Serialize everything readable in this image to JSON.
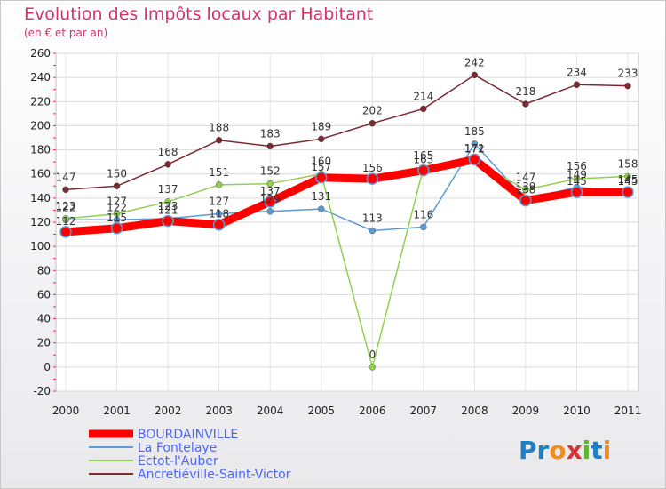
{
  "header": {
    "title": "Evolution des Impôts locaux par Habitant",
    "subtitle": "(en € et par an)"
  },
  "logo": {
    "text": "Proxiti"
  },
  "chart_data": {
    "type": "line",
    "title": "Evolution des Impôts locaux par Habitant",
    "subtitle": "(en € et par an)",
    "xlabel": "",
    "ylabel": "",
    "x": [
      "2000",
      "2001",
      "2002",
      "2003",
      "2004",
      "2005",
      "2006",
      "2007",
      "2008",
      "2009",
      "2010",
      "2011"
    ],
    "ylim": [
      -20,
      260
    ],
    "yticks": [
      -20,
      0,
      20,
      40,
      60,
      80,
      100,
      120,
      140,
      160,
      180,
      200,
      220,
      240,
      260
    ],
    "grid": true,
    "legend_position": "bottom-left",
    "series": [
      {
        "name": "BOURDAINVILLE",
        "color": "#ff0000",
        "values": [
          112,
          115,
          121,
          118,
          137,
          157,
          156,
          163,
          172,
          138,
          145,
          145
        ]
      },
      {
        "name": "La Fontelaye",
        "color": "#5b9bd5",
        "values": [
          122,
          122,
          123,
          127,
          129,
          131,
          113,
          116,
          185,
          139,
          149,
          145
        ]
      },
      {
        "name": "Ectot-l'Auber",
        "color": "#92d050",
        "values": [
          123,
          127,
          137,
          151,
          152,
          160,
          0,
          165,
          171,
          147,
          156,
          158
        ]
      },
      {
        "name": "Ancretiéville-Saint-Victor",
        "color": "#7b2a33",
        "values": [
          147,
          150,
          168,
          188,
          183,
          189,
          202,
          214,
          242,
          218,
          234,
          233
        ]
      }
    ],
    "data_labels": [
      {
        "series": 0,
        "i": 0,
        "text": "112"
      },
      {
        "series": 0,
        "i": 1,
        "text": "115"
      },
      {
        "series": 0,
        "i": 2,
        "text": "121"
      },
      {
        "series": 0,
        "i": 3,
        "text": "118"
      },
      {
        "series": 0,
        "i": 4,
        "text": "137"
      },
      {
        "series": 0,
        "i": 5,
        "text": "157"
      },
      {
        "series": 0,
        "i": 6,
        "text": "156"
      },
      {
        "series": 0,
        "i": 7,
        "text": "163"
      },
      {
        "series": 0,
        "i": 8,
        "text": "172"
      },
      {
        "series": 0,
        "i": 9,
        "text": "138"
      },
      {
        "series": 0,
        "i": 10,
        "text": "145"
      },
      {
        "series": 0,
        "i": 11,
        "text": "145"
      },
      {
        "series": 1,
        "i": 0,
        "text": "122"
      },
      {
        "series": 1,
        "i": 1,
        "text": "122"
      },
      {
        "series": 1,
        "i": 2,
        "text": "123"
      },
      {
        "series": 1,
        "i": 3,
        "text": "127"
      },
      {
        "series": 1,
        "i": 4,
        "text": "129"
      },
      {
        "series": 1,
        "i": 5,
        "text": "131"
      },
      {
        "series": 1,
        "i": 6,
        "text": "113"
      },
      {
        "series": 1,
        "i": 7,
        "text": "116"
      },
      {
        "series": 1,
        "i": 8,
        "text": "185"
      },
      {
        "series": 1,
        "i": 9,
        "text": "139"
      },
      {
        "series": 1,
        "i": 10,
        "text": "149"
      },
      {
        "series": 1,
        "i": 11,
        "text": "145"
      },
      {
        "series": 2,
        "i": 0,
        "text": "123"
      },
      {
        "series": 2,
        "i": 1,
        "text": "127"
      },
      {
        "series": 2,
        "i": 2,
        "text": "137"
      },
      {
        "series": 2,
        "i": 3,
        "text": "151"
      },
      {
        "series": 2,
        "i": 4,
        "text": "152"
      },
      {
        "series": 2,
        "i": 5,
        "text": "160"
      },
      {
        "series": 2,
        "i": 6,
        "text": "0"
      },
      {
        "series": 2,
        "i": 7,
        "text": "165"
      },
      {
        "series": 2,
        "i": 8,
        "text": "171"
      },
      {
        "series": 2,
        "i": 9,
        "text": "147"
      },
      {
        "series": 2,
        "i": 10,
        "text": "156"
      },
      {
        "series": 2,
        "i": 11,
        "text": "158"
      },
      {
        "series": 3,
        "i": 0,
        "text": "147"
      },
      {
        "series": 3,
        "i": 1,
        "text": "150"
      },
      {
        "series": 3,
        "i": 2,
        "text": "168"
      },
      {
        "series": 3,
        "i": 3,
        "text": "188"
      },
      {
        "series": 3,
        "i": 4,
        "text": "183"
      },
      {
        "series": 3,
        "i": 5,
        "text": "189"
      },
      {
        "series": 3,
        "i": 6,
        "text": "202"
      },
      {
        "series": 3,
        "i": 7,
        "text": "214"
      },
      {
        "series": 3,
        "i": 8,
        "text": "242"
      },
      {
        "series": 3,
        "i": 9,
        "text": "218"
      },
      {
        "series": 3,
        "i": 10,
        "text": "234"
      },
      {
        "series": 3,
        "i": 11,
        "text": "233"
      }
    ]
  }
}
